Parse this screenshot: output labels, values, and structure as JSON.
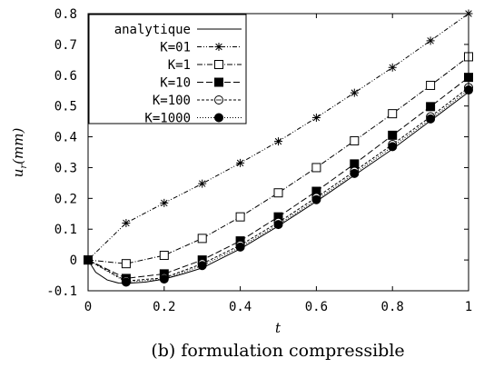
{
  "chart_data": {
    "type": "line",
    "caption": "(b)  formulation compressible",
    "xlabel": "t",
    "ylabel_main": "u",
    "ylabel_sub": "r",
    "ylabel_unit": "(mm)",
    "xlim": [
      0,
      1
    ],
    "ylim": [
      -0.1,
      0.8
    ],
    "xticks": [
      0,
      0.2,
      0.4,
      0.6,
      0.8,
      1
    ],
    "xtick_labels": [
      "0",
      "0.2",
      "0.4",
      "0.6",
      "0.8",
      "1"
    ],
    "yticks": [
      -0.1,
      0,
      0.1,
      0.2,
      0.3,
      0.4,
      0.5,
      0.6,
      0.7,
      0.8
    ],
    "ytick_labels": [
      "-0.1",
      "0",
      "0.1",
      "0.2",
      "0.3",
      "0.4",
      "0.5",
      "0.6",
      "0.7",
      "0.8"
    ],
    "grid": false,
    "legend_position": "top-left",
    "series": [
      {
        "name": "analytique",
        "style": "solid",
        "marker": "none",
        "x": [
          0,
          0.02,
          0.05,
          0.08,
          0.1,
          0.15,
          0.2,
          0.25,
          0.3,
          0.4,
          0.5,
          0.6,
          0.7,
          0.8,
          0.9,
          1.0
        ],
        "y": [
          0,
          -0.04,
          -0.065,
          -0.075,
          -0.076,
          -0.072,
          -0.062,
          -0.045,
          -0.026,
          0.036,
          0.11,
          0.19,
          0.275,
          0.36,
          0.452,
          0.545
        ]
      },
      {
        "name": "K=01",
        "style": "dash-dot-dot",
        "marker": "star",
        "x": [
          0,
          0.1,
          0.2,
          0.3,
          0.4,
          0.5,
          0.6,
          0.7,
          0.8,
          0.9,
          1.0
        ],
        "y": [
          0,
          0.12,
          0.185,
          0.248,
          0.315,
          0.385,
          0.462,
          0.543,
          0.625,
          0.712,
          0.8
        ]
      },
      {
        "name": "K=1",
        "style": "dash-dot",
        "marker": "open-square",
        "x": [
          0,
          0.1,
          0.2,
          0.3,
          0.4,
          0.5,
          0.6,
          0.7,
          0.8,
          0.9,
          1.0
        ],
        "y": [
          0,
          -0.012,
          0.015,
          0.07,
          0.14,
          0.218,
          0.3,
          0.387,
          0.475,
          0.567,
          0.66
        ]
      },
      {
        "name": "K=10",
        "style": "dashed",
        "marker": "filled-square",
        "x": [
          0,
          0.1,
          0.2,
          0.3,
          0.4,
          0.5,
          0.6,
          0.7,
          0.8,
          0.9,
          1.0
        ],
        "y": [
          0,
          -0.06,
          -0.045,
          0.0,
          0.062,
          0.14,
          0.223,
          0.312,
          0.405,
          0.498,
          0.593
        ]
      },
      {
        "name": "K=100",
        "style": "short-dash",
        "marker": "open-circle",
        "x": [
          0,
          0.1,
          0.2,
          0.3,
          0.4,
          0.5,
          0.6,
          0.7,
          0.8,
          0.9,
          1.0
        ],
        "y": [
          0,
          -0.068,
          -0.058,
          -0.012,
          0.048,
          0.122,
          0.203,
          0.288,
          0.375,
          0.465,
          0.56
        ]
      },
      {
        "name": "K=1000",
        "style": "dotted",
        "marker": "filled-circle",
        "x": [
          0,
          0.1,
          0.2,
          0.3,
          0.4,
          0.5,
          0.6,
          0.7,
          0.8,
          0.9,
          1.0
        ],
        "y": [
          0,
          -0.072,
          -0.062,
          -0.018,
          0.042,
          0.115,
          0.196,
          0.281,
          0.368,
          0.458,
          0.552
        ]
      }
    ]
  }
}
